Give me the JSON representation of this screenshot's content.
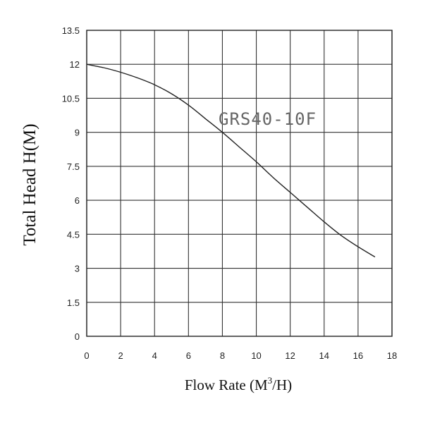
{
  "chart_data": {
    "type": "line",
    "title": "",
    "xlabel_text": "Flow Rate (M",
    "xlabel_sup": "3",
    "xlabel_suffix": "/H)",
    "ylabel": "Total Head H(M)",
    "xlim": [
      0,
      18
    ],
    "ylim": [
      0,
      13.5
    ],
    "x_ticks": [
      0,
      2,
      4,
      6,
      8,
      10,
      12,
      14,
      16,
      18
    ],
    "y_ticks": [
      0,
      1.5,
      3,
      4.5,
      6,
      7.5,
      9,
      10.5,
      12,
      13.5
    ],
    "y_tick_labels": [
      "0",
      "1.5",
      "3",
      "4.5",
      "6",
      "7.5",
      "9",
      "10.5",
      "12",
      "13.5"
    ],
    "grid": true,
    "series": [
      {
        "name": "GRS40-10F",
        "x": [
          0,
          1,
          2,
          3,
          4,
          5,
          6,
          7,
          8,
          9,
          10,
          11,
          12,
          13,
          14,
          15,
          16,
          17
        ],
        "y": [
          12.0,
          11.85,
          11.65,
          11.4,
          11.1,
          10.7,
          10.2,
          9.6,
          9.0,
          8.35,
          7.7,
          7.0,
          6.35,
          5.7,
          5.05,
          4.45,
          3.95,
          3.5
        ]
      }
    ]
  }
}
